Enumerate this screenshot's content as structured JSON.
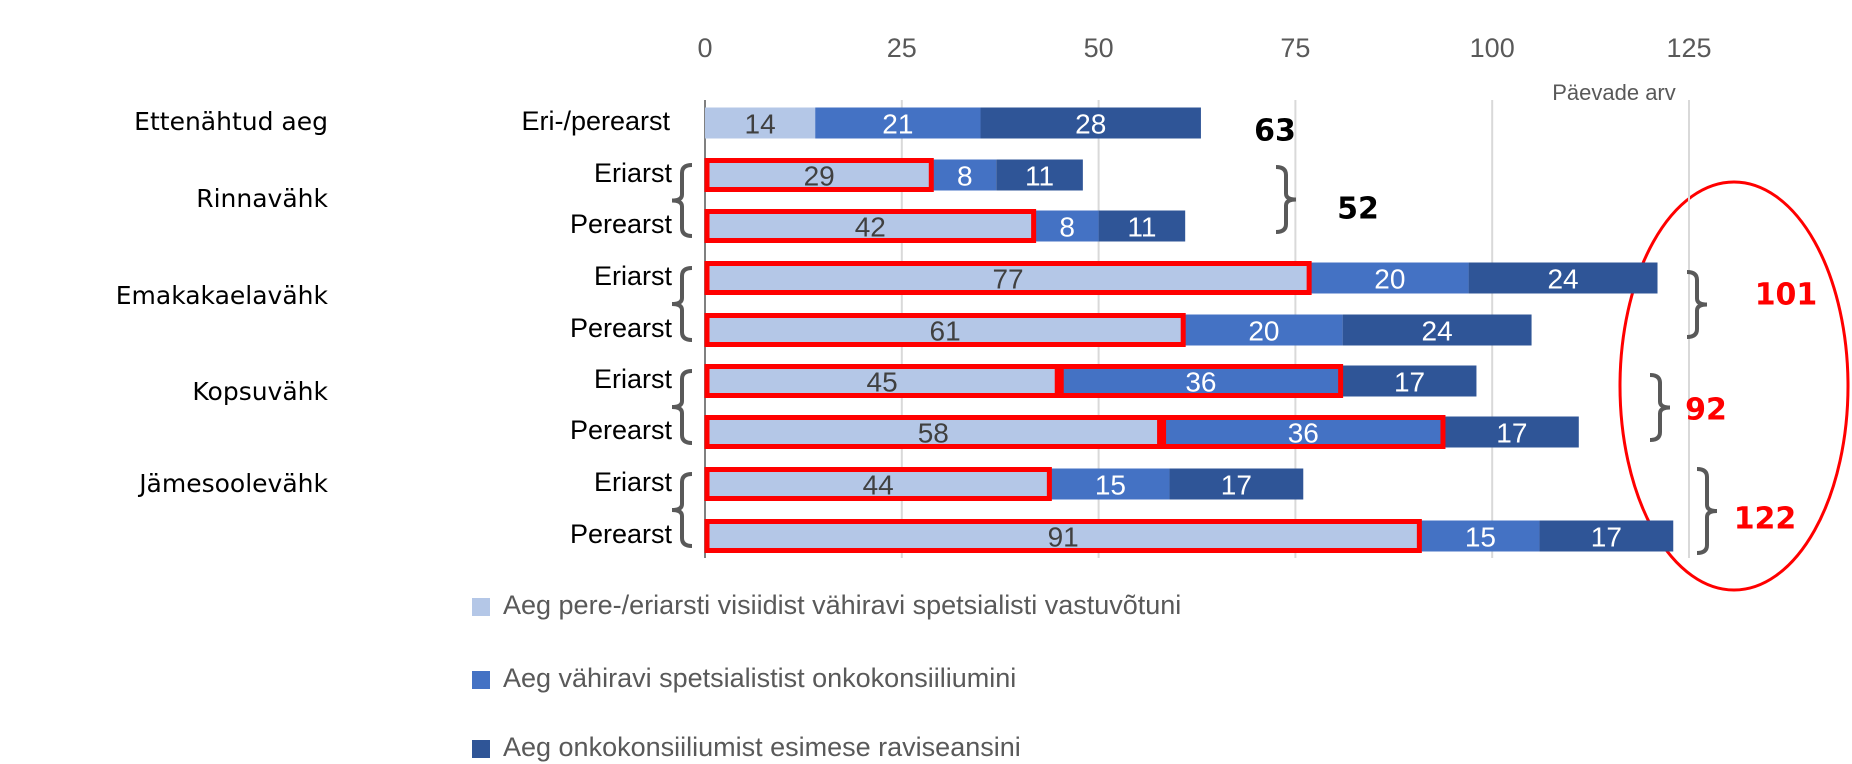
{
  "chart_data": {
    "type": "stacked-bar-horizontal",
    "axis_label": "Päevade arv",
    "categories": [
      "Eri-/perearst",
      "Eriarst",
      "Perearst",
      "Eriarst",
      "Perearst",
      "Eriarst",
      "Perearst",
      "Eriarst",
      "Perearst"
    ],
    "groups": [
      {
        "label": "Ettenähtud aeg",
        "total": 63,
        "total_color": "#000000"
      },
      {
        "label": "Rinnavähk",
        "total": 52,
        "total_color": "#000000"
      },
      {
        "label": "Emakakaelavähk",
        "total": 101,
        "total_color": "#ff0000"
      },
      {
        "label": "Kopsuvähk",
        "total": 92,
        "total_color": "#ff0000"
      },
      {
        "label": "Jämesoolevähk",
        "total": 122,
        "total_color": "#ff0000"
      }
    ],
    "series": [
      {
        "name": "Aeg pere-/eriarsti visiidist vähiravi spetsialisti vastuvõtuni",
        "color": "#b4c7e7",
        "label_color": "#404040",
        "values": [
          14,
          29,
          42,
          77,
          61,
          45,
          58,
          44,
          91
        ],
        "outlined": [
          false,
          true,
          true,
          true,
          true,
          true,
          true,
          true,
          true
        ]
      },
      {
        "name": "Aeg vähiravi spetsialistist onkokonsiiliumini",
        "color": "#4472c4",
        "label_color": "#ffffff",
        "values": [
          21,
          8,
          8,
          20,
          20,
          36,
          36,
          15,
          15
        ],
        "outlined": [
          false,
          false,
          false,
          false,
          false,
          true,
          true,
          false,
          false
        ]
      },
      {
        "name": "Aeg onkokonsiiliumist esimese raviseansini",
        "color": "#2f5597",
        "label_color": "#ffffff",
        "values": [
          28,
          11,
          11,
          24,
          24,
          17,
          17,
          17,
          17
        ],
        "outlined": [
          false,
          false,
          false,
          false,
          false,
          false,
          false,
          false,
          false
        ]
      }
    ],
    "outline_color": "#ff0000",
    "xlim": [
      0,
      125
    ],
    "xticks": [
      0,
      25,
      50,
      75,
      100,
      125
    ],
    "grid": true
  }
}
